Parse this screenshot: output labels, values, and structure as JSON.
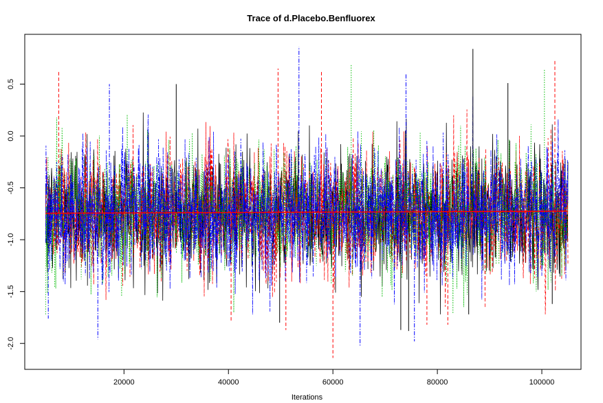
{
  "chart_data": {
    "type": "line",
    "title": "Trace of d.Placebo.Benfluorex",
    "xlabel": "Iterations",
    "ylabel": "",
    "xlim": [
      1000,
      107500
    ],
    "ylim": [
      -2.25,
      0.98
    ],
    "x_ticks": [
      20000,
      40000,
      60000,
      80000,
      100000
    ],
    "x_tick_labels": [
      "20000",
      "40000",
      "60000",
      "80000",
      "100000"
    ],
    "y_ticks": [
      -2.0,
      -1.5,
      -1.0,
      -0.5,
      0.0,
      0.5
    ],
    "y_tick_labels": [
      "-2.0",
      "-1.5",
      "-1.0",
      "-0.5",
      "0.0",
      "0.5"
    ],
    "grid": false,
    "legend": "none",
    "iteration_range": [
      5000,
      105000
    ],
    "series": [
      {
        "color": "#000000",
        "dash": "solid",
        "center": -0.74,
        "spread": 0.3
      },
      {
        "color": "#ff0000",
        "dash": "dashed",
        "center": -0.74,
        "spread": 0.3
      },
      {
        "color": "#00bb00",
        "dash": "dotted",
        "center": -0.74,
        "spread": 0.3
      },
      {
        "color": "#0000ff",
        "dash": "dotdash",
        "center": -0.74,
        "spread": 0.3
      }
    ],
    "running_mean": {
      "color": "#ff0000",
      "start": -0.745,
      "end": -0.725
    },
    "extremes": [
      {
        "x": 86800,
        "y": 0.84,
        "series": 0
      },
      {
        "x": 53500,
        "y": 0.86,
        "series": 3
      },
      {
        "x": 102500,
        "y": 0.74,
        "series": 1
      },
      {
        "x": 7500,
        "y": 0.62,
        "series": 1
      },
      {
        "x": 49500,
        "y": 0.65,
        "series": 1
      },
      {
        "x": 63500,
        "y": 0.69,
        "series": 2
      },
      {
        "x": 100500,
        "y": 0.65,
        "series": 2
      },
      {
        "x": 57800,
        "y": 0.63,
        "series": 1
      },
      {
        "x": 30000,
        "y": 0.5,
        "series": 0
      },
      {
        "x": 17200,
        "y": 0.5,
        "series": 3
      },
      {
        "x": 74000,
        "y": 0.6,
        "series": 3
      },
      {
        "x": 93500,
        "y": 0.51,
        "series": 0
      },
      {
        "x": 60000,
        "y": -2.14,
        "series": 1
      },
      {
        "x": 65200,
        "y": -2.02,
        "series": 3
      },
      {
        "x": 75600,
        "y": -1.98,
        "series": 3
      },
      {
        "x": 15000,
        "y": -1.96,
        "series": 3
      },
      {
        "x": 73000,
        "y": -1.87,
        "series": 0
      },
      {
        "x": 74500,
        "y": -1.88,
        "series": 0
      },
      {
        "x": 51000,
        "y": -1.87,
        "series": 1
      },
      {
        "x": 5500,
        "y": -1.76,
        "series": 3
      },
      {
        "x": 40500,
        "y": -1.78,
        "series": 1
      },
      {
        "x": 49800,
        "y": -1.8,
        "series": 0
      },
      {
        "x": 78000,
        "y": -1.82,
        "series": 1
      },
      {
        "x": 82000,
        "y": -1.82,
        "series": 1
      },
      {
        "x": 86000,
        "y": -1.72,
        "series": 0
      },
      {
        "x": 102000,
        "y": -1.62,
        "series": 0
      }
    ]
  }
}
